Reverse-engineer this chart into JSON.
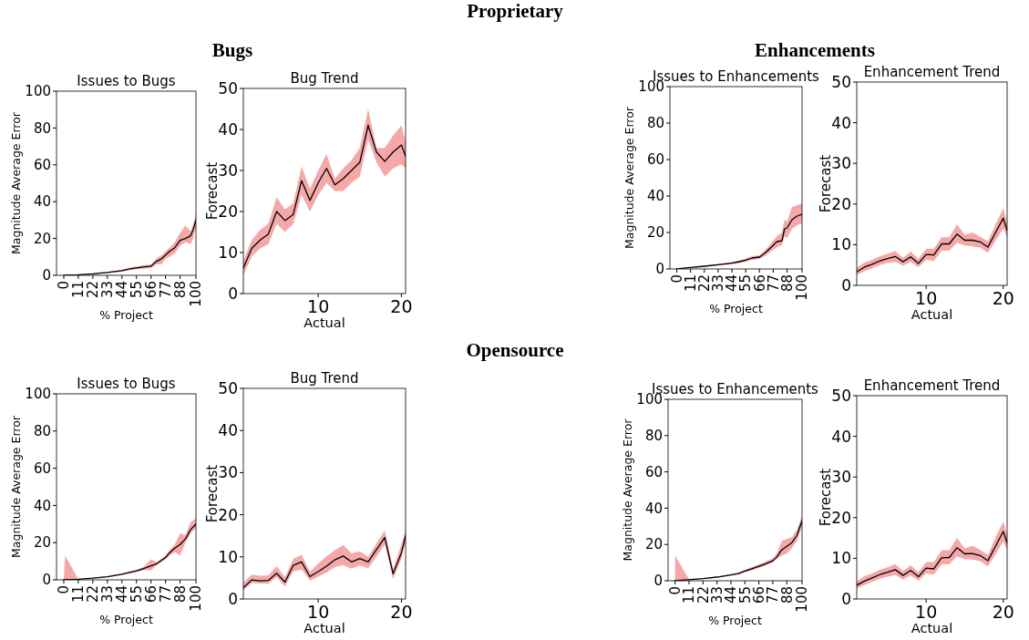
{
  "chart_data": [
    {
      "type": "line",
      "title": "Issues to Bugs",
      "xlabel": "% Project",
      "ylabel": "Magnitude Average Error",
      "annotations": [
        "Proprietary",
        "Bugs"
      ],
      "xlim": [
        -5.5,
        100
      ],
      "ylim": [
        0,
        100
      ],
      "xticks": [
        0,
        11,
        22,
        33,
        44,
        55,
        66,
        77,
        88,
        100
      ],
      "yticks": [
        0,
        20,
        40,
        60,
        80,
        100
      ],
      "x": [
        0,
        11,
        22,
        33,
        44,
        50,
        55,
        60,
        66,
        70,
        74,
        77,
        80,
        84,
        88,
        92,
        96,
        98,
        100
      ],
      "series": [
        {
          "color": "#000000",
          "values": [
            0,
            0.3,
            0.8,
            1.5,
            2.5,
            3.5,
            4,
            4.5,
            5,
            7.5,
            9,
            11,
            13,
            15,
            19,
            20,
            21.5,
            25,
            30
          ],
          "lower": [
            0,
            0.2,
            0.6,
            1.2,
            2,
            2.8,
            3.2,
            3.6,
            4,
            6,
            6,
            9,
            10,
            12,
            16,
            18,
            17,
            20,
            27
          ],
          "upper": [
            0,
            0.4,
            1,
            1.9,
            3,
            4.2,
            4.8,
            5.4,
            6,
            9,
            11,
            13,
            15,
            18,
            23,
            27,
            24,
            28,
            34
          ]
        }
      ]
    },
    {
      "type": "line",
      "title": "Bug Trend",
      "xlabel": "Actual",
      "ylabel": "Forecast",
      "xlim": [
        1,
        20.5
      ],
      "ylim": [
        0,
        50
      ],
      "xticks": [
        10,
        20
      ],
      "yticks": [
        0,
        10,
        20,
        30,
        40,
        50
      ],
      "x": [
        1,
        2,
        3,
        4,
        5,
        6,
        7,
        8,
        9,
        10,
        11,
        12,
        13,
        14,
        15,
        16,
        17,
        18,
        19,
        20,
        20.5
      ],
      "series": [
        {
          "color": "#000000",
          "values": [
            6.2,
            11,
            13,
            14.5,
            20,
            17.8,
            19.3,
            27.5,
            22.7,
            27,
            30.5,
            26.5,
            28,
            30,
            32,
            41,
            34.5,
            32.2,
            34.5,
            36.2,
            33.5
          ],
          "lower": [
            4.5,
            9,
            11,
            12,
            17,
            15,
            17,
            24,
            20,
            24,
            27,
            25,
            25,
            27,
            28.5,
            37.5,
            32,
            28.5,
            30.5,
            31.5,
            30.5
          ],
          "upper": [
            8,
            13,
            15.5,
            17,
            23.5,
            20.5,
            22,
            31,
            25.5,
            30,
            34,
            28,
            30.5,
            32.5,
            35.5,
            45,
            35.5,
            35.5,
            38.5,
            41,
            37
          ]
        }
      ]
    },
    {
      "type": "line",
      "title": "Issues to Enhancements",
      "xlabel": "% Project",
      "ylabel": "Magnitude Average Error",
      "annotations": [
        "Enhancements"
      ],
      "xlim": [
        -5.5,
        100
      ],
      "ylim": [
        0,
        100
      ],
      "xticks": [
        0,
        11,
        22,
        33,
        44,
        55,
        66,
        77,
        88,
        100
      ],
      "yticks": [
        0,
        20,
        40,
        60,
        80,
        100
      ],
      "x": [
        0,
        11,
        22,
        33,
        44,
        50,
        55,
        60,
        66,
        70,
        74,
        77,
        80,
        84,
        86,
        88,
        92,
        96,
        100
      ],
      "series": [
        {
          "color": "#000000",
          "values": [
            0,
            0.8,
            1.5,
            2.3,
            3.2,
            4,
            4.8,
            6,
            6.5,
            8.5,
            11,
            13,
            15,
            15.5,
            22,
            22.5,
            27,
            29,
            30
          ],
          "lower": [
            0,
            0.6,
            1.2,
            1.9,
            2.6,
            3.3,
            4,
            5,
            5.5,
            7,
            9,
            10.5,
            12,
            13,
            18,
            17,
            22,
            24,
            25
          ],
          "upper": [
            0,
            1,
            1.8,
            2.7,
            3.8,
            4.8,
            5.6,
            7,
            7.5,
            10,
            13,
            15.5,
            18,
            20,
            27,
            26,
            34,
            35,
            36
          ]
        }
      ]
    },
    {
      "type": "line",
      "title": "Enhancement Trend",
      "xlabel": "Actual",
      "ylabel": "Forecast",
      "xlim": [
        1,
        20.5
      ],
      "ylim": [
        0,
        50
      ],
      "xticks": [
        10,
        20
      ],
      "yticks": [
        0,
        10,
        20,
        30,
        40,
        50
      ],
      "x": [
        1,
        2,
        3,
        4,
        5,
        6,
        7,
        8,
        9,
        10,
        11,
        12,
        13,
        14,
        15,
        16,
        17,
        18,
        19,
        20,
        20.5
      ],
      "series": [
        {
          "color": "#000000",
          "values": [
            3.3,
            4.5,
            5.2,
            6,
            6.6,
            7.1,
            5.8,
            7,
            5.4,
            7.6,
            7.5,
            10.2,
            10.2,
            12.6,
            11.1,
            11.1,
            10.7,
            9.4,
            13,
            16.5,
            13.5
          ],
          "lower": [
            2.5,
            3.5,
            4.2,
            5,
            5.5,
            5.8,
            4.8,
            5.8,
            4.5,
            6.3,
            6,
            8.5,
            8.5,
            10.5,
            9.8,
            9.6,
            9.3,
            8,
            11,
            14,
            11.8
          ],
          "upper": [
            4.3,
            5.6,
            6.3,
            7.2,
            7.8,
            8.4,
            6.8,
            8.3,
            6.5,
            9,
            9,
            11.8,
            11.8,
            15,
            12.4,
            13,
            12,
            10.8,
            15,
            19,
            15.5
          ]
        }
      ]
    },
    {
      "type": "line",
      "title": "Issues to Bugs",
      "xlabel": "% Project",
      "ylabel": "Magnitude Average Error",
      "annotations": [
        "Opensource"
      ],
      "xlim": [
        -5.5,
        100
      ],
      "ylim": [
        0,
        100
      ],
      "xticks": [
        0,
        11,
        22,
        33,
        44,
        55,
        66,
        77,
        88,
        100
      ],
      "yticks": [
        0,
        20,
        40,
        60,
        80,
        100
      ],
      "x": [
        0,
        1,
        11,
        22,
        33,
        44,
        55,
        60,
        66,
        70,
        77,
        80,
        84,
        88,
        92,
        96,
        100
      ],
      "series": [
        {
          "color": "#000000",
          "values": [
            0,
            0.1,
            0.3,
            0.9,
            1.7,
            3,
            4.8,
            6,
            7.5,
            8.5,
            12,
            14.5,
            17,
            19,
            22,
            27,
            30
          ],
          "lower": [
            0,
            0,
            0.2,
            0.7,
            1.4,
            2.6,
            4.2,
            5.2,
            5,
            7.8,
            11,
            13,
            15,
            13,
            20,
            25,
            28
          ],
          "upper": [
            0,
            13,
            0.4,
            1.1,
            2,
            3.4,
            5.4,
            6.8,
            11,
            9.5,
            13,
            16,
            19,
            25,
            24,
            31,
            33
          ]
        }
      ]
    },
    {
      "type": "line",
      "title": "Bug Trend",
      "xlabel": "Actual",
      "ylabel": "Forecast",
      "xlim": [
        1,
        20.5
      ],
      "ylim": [
        0,
        50
      ],
      "xticks": [
        10,
        20
      ],
      "yticks": [
        0,
        10,
        20,
        30,
        40,
        50
      ],
      "x": [
        1,
        2,
        3,
        4,
        5,
        6,
        7,
        8,
        9,
        10,
        11,
        12,
        13,
        14,
        15,
        16,
        17,
        18,
        19,
        20,
        20.5
      ],
      "series": [
        {
          "color": "#000000",
          "values": [
            2.7,
            4.5,
            4.3,
            4.4,
            6.1,
            4,
            8,
            8.8,
            5.3,
            6.5,
            7.8,
            9.3,
            10.2,
            8.8,
            9.6,
            8.8,
            11.7,
            14.6,
            6,
            11,
            15
          ],
          "lower": [
            2,
            3.8,
            3.7,
            3.6,
            5.2,
            3,
            6.6,
            7,
            4.4,
            5.3,
            6.3,
            7.6,
            8,
            7.2,
            8,
            7.3,
            10,
            13,
            4.7,
            9.5,
            13.5
          ],
          "upper": [
            3.8,
            5.8,
            5.5,
            5.6,
            7.8,
            5.2,
            9.5,
            10.5,
            6.5,
            8.4,
            10.1,
            11.6,
            12.8,
            10.8,
            11.3,
            10,
            13.2,
            16.3,
            7.2,
            13,
            16.5
          ]
        }
      ]
    },
    {
      "type": "line",
      "title": "Issues to Enhancements",
      "xlabel": "% Project",
      "ylabel": "Magnitude Average Error",
      "xlim": [
        -5.5,
        100
      ],
      "ylim": [
        0,
        100
      ],
      "xticks": [
        0,
        11,
        22,
        33,
        44,
        55,
        66,
        77,
        88,
        100
      ],
      "yticks": [
        0,
        20,
        40,
        60,
        80,
        100
      ],
      "x": [
        0,
        11,
        22,
        33,
        44,
        50,
        55,
        60,
        66,
        70,
        77,
        80,
        84,
        88,
        92,
        96,
        100
      ],
      "series": [
        {
          "color": "#000000",
          "values": [
            0,
            0.6,
            1.2,
            2,
            3.2,
            4,
            5.3,
            6.5,
            8,
            9,
            11,
            13,
            17,
            19,
            21,
            25,
            33
          ],
          "lower": [
            0,
            0.5,
            1,
            1.7,
            2.8,
            3.5,
            4.6,
            5.6,
            7,
            8,
            10,
            12,
            14,
            15,
            18,
            22,
            30
          ],
          "upper": [
            14,
            0.7,
            1.4,
            2.3,
            3.6,
            4.5,
            6,
            7.4,
            9,
            10,
            12.5,
            15,
            22,
            23,
            24,
            28,
            36
          ]
        }
      ]
    },
    {
      "type": "line",
      "title": "Enhancement Trend",
      "xlabel": "Actual",
      "ylabel": "Forecast",
      "xlim": [
        1,
        20.5
      ],
      "ylim": [
        0,
        50
      ],
      "xticks": [
        10,
        20
      ],
      "yticks": [
        0,
        10,
        20,
        30,
        40,
        50
      ],
      "x": [
        1,
        2,
        3,
        4,
        5,
        6,
        7,
        8,
        9,
        10,
        11,
        12,
        13,
        14,
        15,
        16,
        17,
        18,
        19,
        20,
        20.5
      ],
      "series": [
        {
          "color": "#000000",
          "values": [
            3.4,
            4.4,
            5.2,
            6,
            6.6,
            7.2,
            5.8,
            7,
            5.5,
            7.6,
            7.4,
            10.1,
            10.2,
            12.6,
            11.1,
            11.2,
            10.7,
            9.4,
            13,
            16.6,
            13.8
          ],
          "lower": [
            2.6,
            3.4,
            4.2,
            5,
            5.5,
            5.9,
            4.8,
            5.8,
            4.5,
            6.3,
            6,
            8.5,
            8.5,
            10.5,
            9.8,
            9.7,
            9.3,
            8,
            11,
            14.2,
            12
          ],
          "upper": [
            4.4,
            5.6,
            6.3,
            7.2,
            7.8,
            8.6,
            6.9,
            8.3,
            6.6,
            9.1,
            9.1,
            12,
            12,
            15,
            12.4,
            13.1,
            12.1,
            10.8,
            15.2,
            19,
            16
          ]
        }
      ]
    }
  ]
}
